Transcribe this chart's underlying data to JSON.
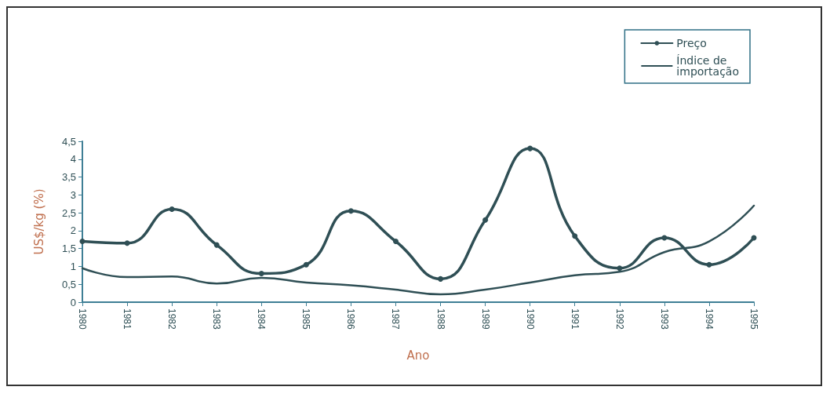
{
  "chart_data": {
    "type": "line",
    "xlabel": "Ano",
    "ylabel": "US$/kg (%)",
    "categories": [
      "1980",
      "1981",
      "1982",
      "1983",
      "1984",
      "1985",
      "1986",
      "1987",
      "1988",
      "1989",
      "1990",
      "1991",
      "1992",
      "1993",
      "1994",
      "1995"
    ],
    "series": [
      {
        "name": "Preço",
        "color": "#2f4f55",
        "marker": "circle",
        "values": [
          1.7,
          1.65,
          2.6,
          1.6,
          0.8,
          1.05,
          2.55,
          1.7,
          0.65,
          2.3,
          4.3,
          1.85,
          0.95,
          1.8,
          1.05,
          1.8
        ]
      },
      {
        "name": "Índice de\nimportação",
        "color": "#2f4f55",
        "marker": "none",
        "values": [
          0.95,
          0.7,
          0.72,
          0.52,
          0.68,
          0.55,
          0.47,
          0.35,
          0.22,
          0.35,
          0.55,
          0.75,
          0.85,
          1.4,
          1.7,
          2.7
        ]
      }
    ],
    "ylim": [
      0,
      4.5
    ],
    "yticks": [
      0,
      {
        "value": 0.5,
        "label": "0,5"
      },
      1,
      {
        "value": 1.5,
        "label": "1,5"
      },
      2,
      {
        "value": 2.5,
        "label": "2,5"
      },
      3,
      {
        "value": 3.5,
        "label": "3,5"
      },
      4,
      {
        "value": 4.5,
        "label": "4,5"
      }
    ],
    "grid": false,
    "legend": "top right",
    "line_style": "solid"
  }
}
